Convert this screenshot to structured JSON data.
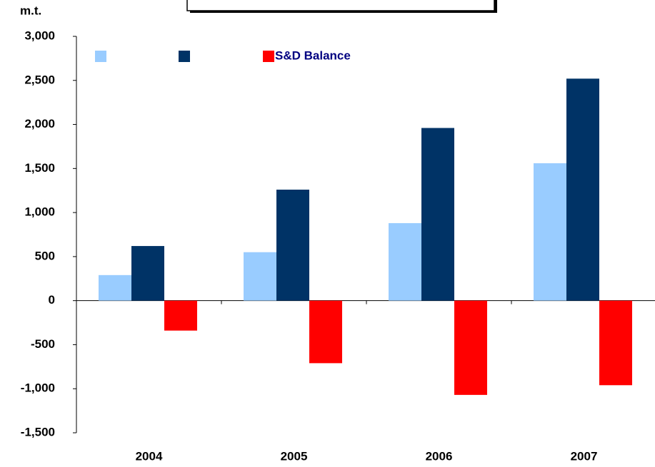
{
  "chart_data": {
    "type": "bar",
    "y_label": "m.t.",
    "categories": [
      "2004",
      "2005",
      "2006",
      "2007"
    ],
    "series": [
      {
        "color": "#99ccff",
        "values": [
          290,
          550,
          880,
          1560
        ]
      },
      {
        "color": "#003366",
        "values": [
          620,
          1260,
          1960,
          2520
        ]
      },
      {
        "name": "S&D Balance",
        "color": "#ff0000",
        "values": [
          -340,
          -710,
          -1070,
          -960
        ]
      }
    ],
    "ylim": [
      -1500,
      3000
    ],
    "yticks": [
      {
        "value": -1500,
        "label": "-1,500"
      },
      {
        "value": -1000,
        "label": "-1,000"
      },
      -500,
      0,
      500,
      {
        "value": 1000,
        "label": "1,000"
      },
      {
        "value": 1500,
        "label": "1,500"
      },
      {
        "value": 2000,
        "label": "2,000"
      },
      {
        "value": 2500,
        "label": "2,500"
      },
      {
        "value": 3000,
        "label": "3,000"
      }
    ],
    "legend": "top-left"
  }
}
